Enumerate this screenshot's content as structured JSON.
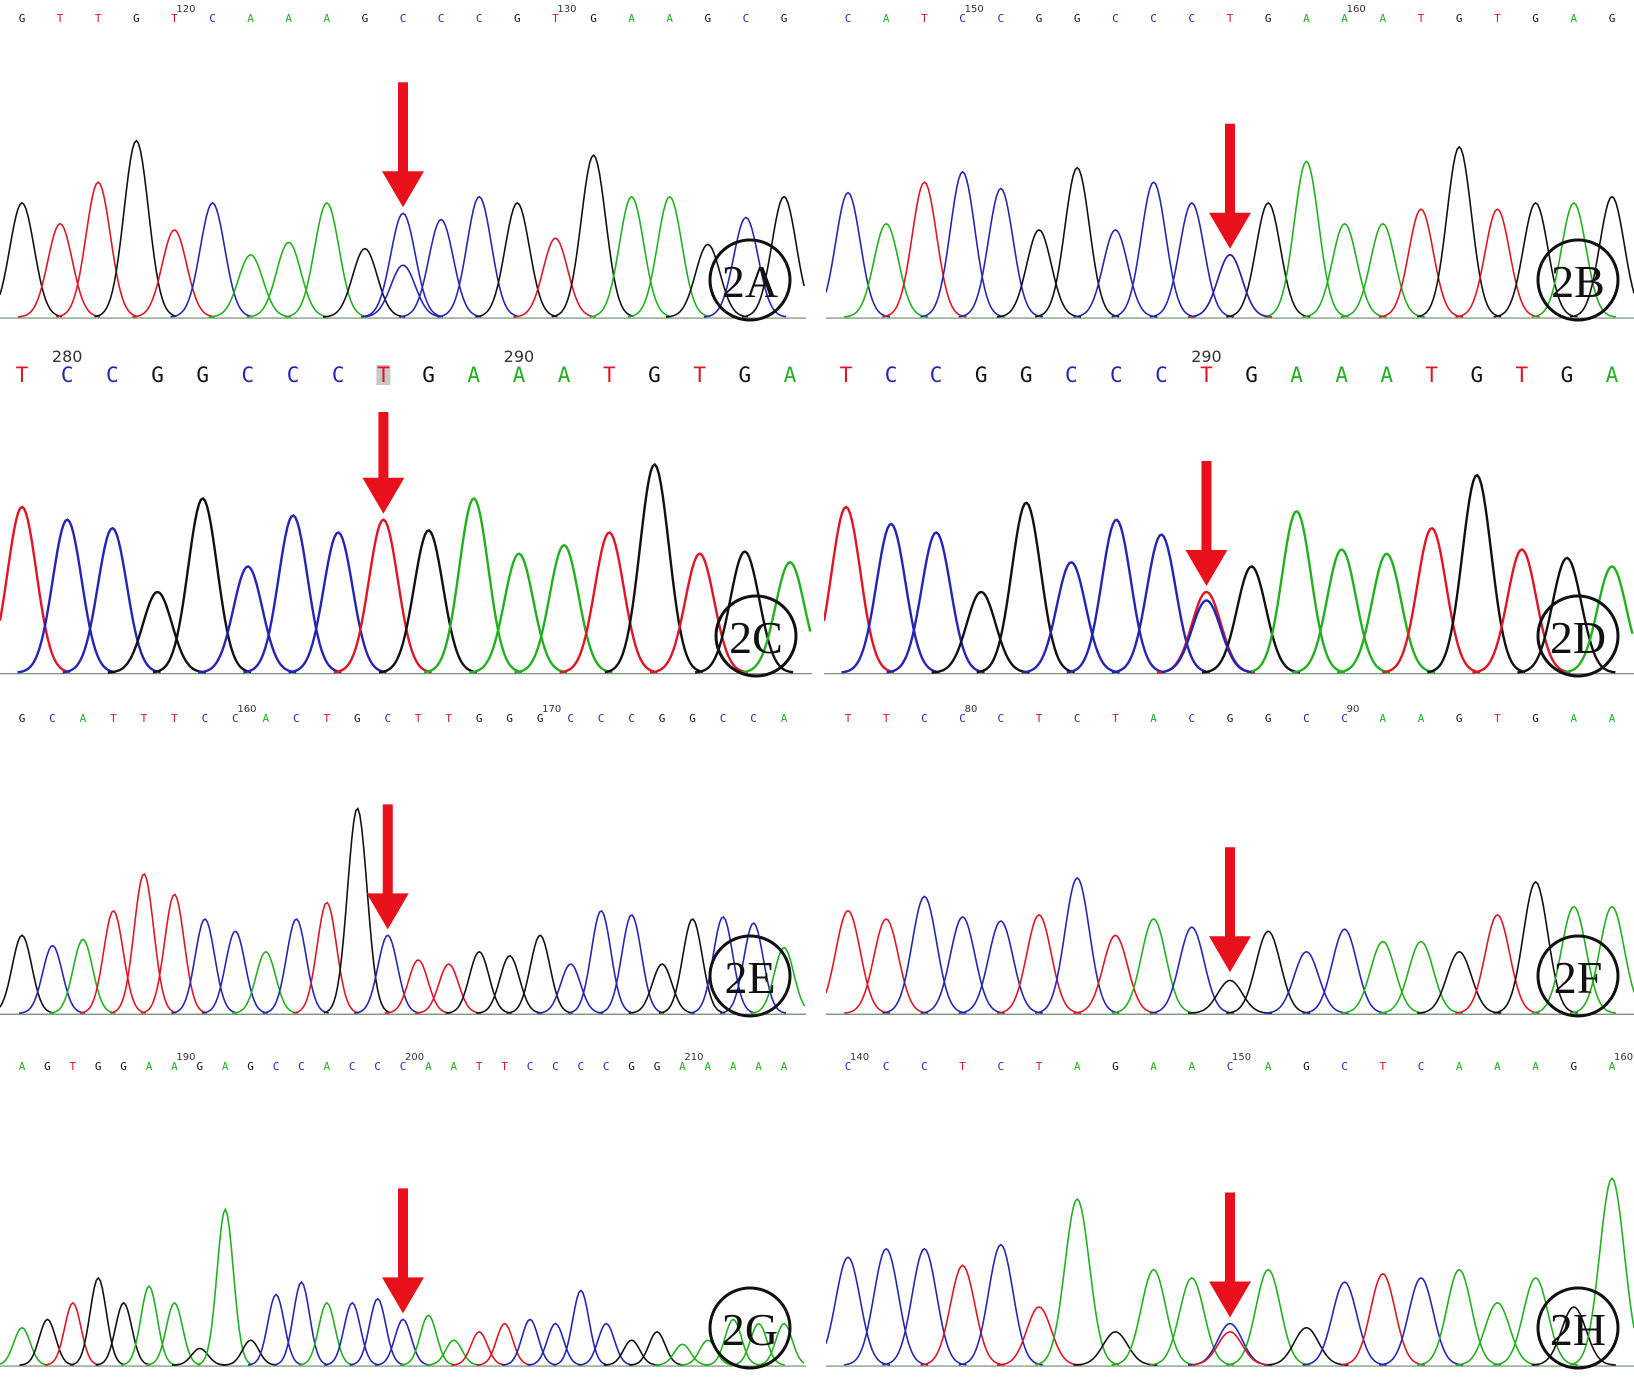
{
  "figure": {
    "colors": {
      "A": "#22b01f",
      "C": "#2525b5",
      "G": "#111111",
      "T": "#e01525",
      "arrow": "#e8101a"
    },
    "panels": [
      {
        "id": "2A",
        "label": "2A",
        "sequence": [
          "G",
          "T",
          "T",
          "G",
          "T",
          "C",
          "A",
          "A",
          "A",
          "G",
          "C",
          "C",
          "C",
          "G",
          "T",
          "G",
          "A",
          "A",
          "G",
          "C",
          "G"
        ],
        "positions": [
          {
            "text": "120",
            "at": 4
          },
          {
            "text": "130",
            "at": 14
          }
        ],
        "arrow_at": 10,
        "heterozygous": "G/C",
        "chart_data": {
          "type": "line",
          "title": "",
          "xlabel": "",
          "ylabel": "",
          "x": [
            "G",
            "T",
            "T",
            "G",
            "T",
            "C",
            "A",
            "A",
            "A",
            "G",
            "C",
            "C",
            "C",
            "G",
            "T",
            "G",
            "A",
            "A",
            "G",
            "C",
            "G"
          ],
          "series": [
            {
              "values": [
                0.55,
                0.45,
                0.65,
                0.85,
                0.42,
                0.55,
                0.3,
                0.36,
                0.55,
                0.33,
                0.5,
                0.47,
                0.58,
                0.55,
                0.38,
                0.78,
                0.58,
                0.58,
                0.35,
                0.48,
                0.58
              ]
            }
          ],
          "secondary_peaks": [
            {
              "at": 10,
              "base": "C",
              "height": 0.25
            }
          ],
          "ylim": [
            0,
            1
          ]
        }
      },
      {
        "id": "2B",
        "label": "2B",
        "sequence": [
          "C",
          "A",
          "T",
          "C",
          "C",
          "G",
          "G",
          "C",
          "C",
          "C",
          "T",
          "G",
          "A",
          "A",
          "A",
          "T",
          "G",
          "T",
          "G",
          "A",
          "G"
        ],
        "positions": [
          {
            "text": "150",
            "at": 3
          },
          {
            "text": "160",
            "at": 13
          }
        ],
        "arrow_at": 10,
        "heterozygous": "C/T",
        "chart_data": {
          "type": "line",
          "title": "",
          "xlabel": "",
          "ylabel": "",
          "x": [
            "C",
            "A",
            "T",
            "C",
            "C",
            "G",
            "G",
            "C",
            "C",
            "C",
            "T",
            "G",
            "A",
            "A",
            "A",
            "T",
            "G",
            "T",
            "G",
            "A",
            "G"
          ],
          "series": [
            {
              "values": [
                0.6,
                0.45,
                0.65,
                0.7,
                0.62,
                0.42,
                0.72,
                0.42,
                0.65,
                0.55,
                0.3,
                0.55,
                0.75,
                0.45,
                0.45,
                0.52,
                0.82,
                0.52,
                0.55,
                0.55,
                0.58
              ]
            }
          ],
          "secondary_peaks": [
            {
              "at": 10,
              "base": "C",
              "height": 0.3
            }
          ],
          "ylim": [
            0,
            1
          ]
        }
      },
      {
        "id": "2C",
        "label": "2C",
        "sequence": [
          "T",
          "C",
          "C",
          "G",
          "G",
          "C",
          "C",
          "C",
          "T",
          "G",
          "A",
          "A",
          "A",
          "T",
          "G",
          "T",
          "G",
          "A"
        ],
        "positions": [
          {
            "text": "280",
            "at": 1
          },
          {
            "text": "290",
            "at": 11
          }
        ],
        "arrow_at": 8,
        "heterozygous": "",
        "chart_data": {
          "type": "line",
          "title": "",
          "xlabel": "",
          "ylabel": "",
          "x": [
            "T",
            "C",
            "C",
            "G",
            "G",
            "C",
            "C",
            "C",
            "T",
            "G",
            "A",
            "A",
            "A",
            "T",
            "G",
            "T",
            "G",
            "A"
          ],
          "series": [
            {
              "values": [
                0.78,
                0.72,
                0.68,
                0.38,
                0.82,
                0.5,
                0.74,
                0.66,
                0.72,
                0.67,
                0.82,
                0.56,
                0.6,
                0.66,
                0.98,
                0.56,
                0.57,
                0.52
              ]
            }
          ],
          "secondary_peaks": [],
          "ylim": [
            0,
            1
          ]
        }
      },
      {
        "id": "2D",
        "label": "2D",
        "sequence": [
          "T",
          "C",
          "C",
          "G",
          "G",
          "C",
          "C",
          "C",
          "T",
          "G",
          "A",
          "A",
          "A",
          "T",
          "G",
          "T",
          "G",
          "A"
        ],
        "positions": [
          {
            "text": "290",
            "at": 8
          }
        ],
        "arrow_at": 8,
        "heterozygous": "C/T",
        "chart_data": {
          "type": "line",
          "title": "",
          "xlabel": "",
          "ylabel": "",
          "x": [
            "T",
            "C",
            "C",
            "G",
            "G",
            "C",
            "C",
            "C",
            "T",
            "G",
            "A",
            "A",
            "A",
            "T",
            "G",
            "T",
            "G",
            "A"
          ],
          "series": [
            {
              "values": [
                0.78,
                0.7,
                0.66,
                0.38,
                0.8,
                0.52,
                0.72,
                0.65,
                0.38,
                0.5,
                0.76,
                0.58,
                0.56,
                0.68,
                0.93,
                0.58,
                0.54,
                0.5
              ]
            }
          ],
          "secondary_peaks": [
            {
              "at": 8,
              "base": "C",
              "height": 0.34
            }
          ],
          "ylim": [
            0,
            1
          ]
        }
      },
      {
        "id": "2E",
        "label": "2E",
        "sequence": [
          "G",
          "C",
          "A",
          "T",
          "T",
          "T",
          "C",
          "C",
          "A",
          "C",
          "T",
          "G",
          "C",
          "T",
          "T",
          "G",
          "G",
          "G",
          "C",
          "C",
          "C",
          "G",
          "G",
          "C",
          "C",
          "A"
        ],
        "positions": [
          {
            "text": "160",
            "at": 7
          },
          {
            "text": "170",
            "at": 17
          }
        ],
        "arrow_at": 12,
        "heterozygous": "",
        "chart_data": {
          "type": "line",
          "title": "",
          "xlabel": "",
          "ylabel": "",
          "x": [
            "G",
            "C",
            "A",
            "T",
            "T",
            "T",
            "C",
            "C",
            "A",
            "C",
            "T",
            "G",
            "C",
            "T",
            "T",
            "G",
            "G",
            "G",
            "C",
            "C",
            "C",
            "G",
            "G",
            "C",
            "C",
            "A"
          ],
          "series": [
            {
              "values": [
                0.38,
                0.33,
                0.36,
                0.5,
                0.68,
                0.58,
                0.46,
                0.4,
                0.3,
                0.46,
                0.54,
                1.0,
                0.38,
                0.26,
                0.24,
                0.3,
                0.28,
                0.38,
                0.24,
                0.5,
                0.48,
                0.24,
                0.46,
                0.47,
                0.44,
                0.32
              ]
            }
          ],
          "secondary_peaks": [],
          "ylim": [
            0,
            1
          ]
        }
      },
      {
        "id": "2F",
        "label": "2F",
        "sequence": [
          "T",
          "T",
          "C",
          "C",
          "C",
          "T",
          "C",
          "T",
          "A",
          "C",
          "G",
          "G",
          "C",
          "C",
          "A",
          "A",
          "G",
          "T",
          "G",
          "A",
          "A"
        ],
        "positions": [
          {
            "text": "80",
            "at": 3
          },
          {
            "text": "90",
            "at": 13
          }
        ],
        "arrow_at": 10,
        "heterozygous": "",
        "chart_data": {
          "type": "line",
          "title": "",
          "xlabel": "",
          "ylabel": "",
          "x": [
            "T",
            "T",
            "C",
            "C",
            "C",
            "T",
            "C",
            "T",
            "A",
            "C",
            "G",
            "G",
            "C",
            "C",
            "A",
            "A",
            "G",
            "T",
            "G",
            "A",
            "A"
          ],
          "series": [
            {
              "values": [
                0.5,
                0.46,
                0.57,
                0.47,
                0.45,
                0.48,
                0.66,
                0.38,
                0.46,
                0.42,
                0.16,
                0.4,
                0.3,
                0.41,
                0.35,
                0.35,
                0.3,
                0.48,
                0.64,
                0.52,
                0.52
              ]
            }
          ],
          "secondary_peaks": [],
          "ylim": [
            0,
            1
          ]
        }
      },
      {
        "id": "2G",
        "label": "2G",
        "sequence": [
          "A",
          "G",
          "T",
          "G",
          "G",
          "A",
          "A",
          "G",
          "A",
          "G",
          "C",
          "C",
          "A",
          "C",
          "C",
          "C",
          "A",
          "A",
          "T",
          "T",
          "C",
          "C",
          "C",
          "C",
          "G",
          "G",
          "A",
          "A",
          "A",
          "A",
          "A"
        ],
        "positions": [
          {
            "text": "190",
            "at": 6
          },
          {
            "text": "200",
            "at": 15
          },
          {
            "text": "210",
            "at": 26
          }
        ],
        "arrow_at": 15,
        "heterozygous": "",
        "chart_data": {
          "type": "line",
          "title": "",
          "xlabel": "",
          "ylabel": "",
          "x": [
            "A",
            "G",
            "T",
            "G",
            "G",
            "A",
            "A",
            "G",
            "A",
            "G",
            "C",
            "C",
            "A",
            "C",
            "C",
            "C",
            "A",
            "A",
            "T",
            "T",
            "C",
            "C",
            "C",
            "C",
            "G",
            "G",
            "A",
            "A",
            "A",
            "A",
            "A"
          ],
          "series": [
            {
              "values": [
                0.18,
                0.22,
                0.3,
                0.42,
                0.3,
                0.38,
                0.3,
                0.08,
                0.75,
                0.12,
                0.34,
                0.4,
                0.3,
                0.3,
                0.32,
                0.22,
                0.24,
                0.12,
                0.16,
                0.2,
                0.22,
                0.2,
                0.36,
                0.2,
                0.12,
                0.16,
                0.1,
                0.12,
                0.22,
                0.2,
                0.2
              ]
            }
          ],
          "secondary_peaks": [],
          "ylim": [
            0,
            1
          ]
        }
      },
      {
        "id": "2H",
        "label": "2H",
        "sequence": [
          "C",
          "C",
          "C",
          "T",
          "C",
          "T",
          "A",
          "G",
          "A",
          "A",
          "C",
          "A",
          "G",
          "C",
          "T",
          "C",
          "A",
          "A",
          "A",
          "G",
          "A"
        ],
        "positions": [
          {
            "text": "140",
            "at": 0
          },
          {
            "text": "150",
            "at": 10
          },
          {
            "text": "160",
            "at": 20
          }
        ],
        "arrow_at": 10,
        "heterozygous": "C/T",
        "chart_data": {
          "type": "line",
          "title": "",
          "xlabel": "",
          "ylabel": "",
          "x": [
            "C",
            "C",
            "C",
            "T",
            "C",
            "T",
            "A",
            "G",
            "A",
            "A",
            "C",
            "A",
            "G",
            "C",
            "T",
            "C",
            "A",
            "A",
            "A",
            "G",
            "A"
          ],
          "series": [
            {
              "values": [
                0.52,
                0.56,
                0.56,
                0.48,
                0.58,
                0.28,
                0.8,
                0.16,
                0.46,
                0.42,
                0.2,
                0.46,
                0.18,
                0.4,
                0.44,
                0.42,
                0.46,
                0.3,
                0.42,
                0.28,
                0.9
              ]
            }
          ],
          "secondary_peaks": [
            {
              "at": 10,
              "base": "T",
              "height": 0.16
            }
          ],
          "ylim": [
            0,
            1
          ]
        }
      }
    ]
  }
}
